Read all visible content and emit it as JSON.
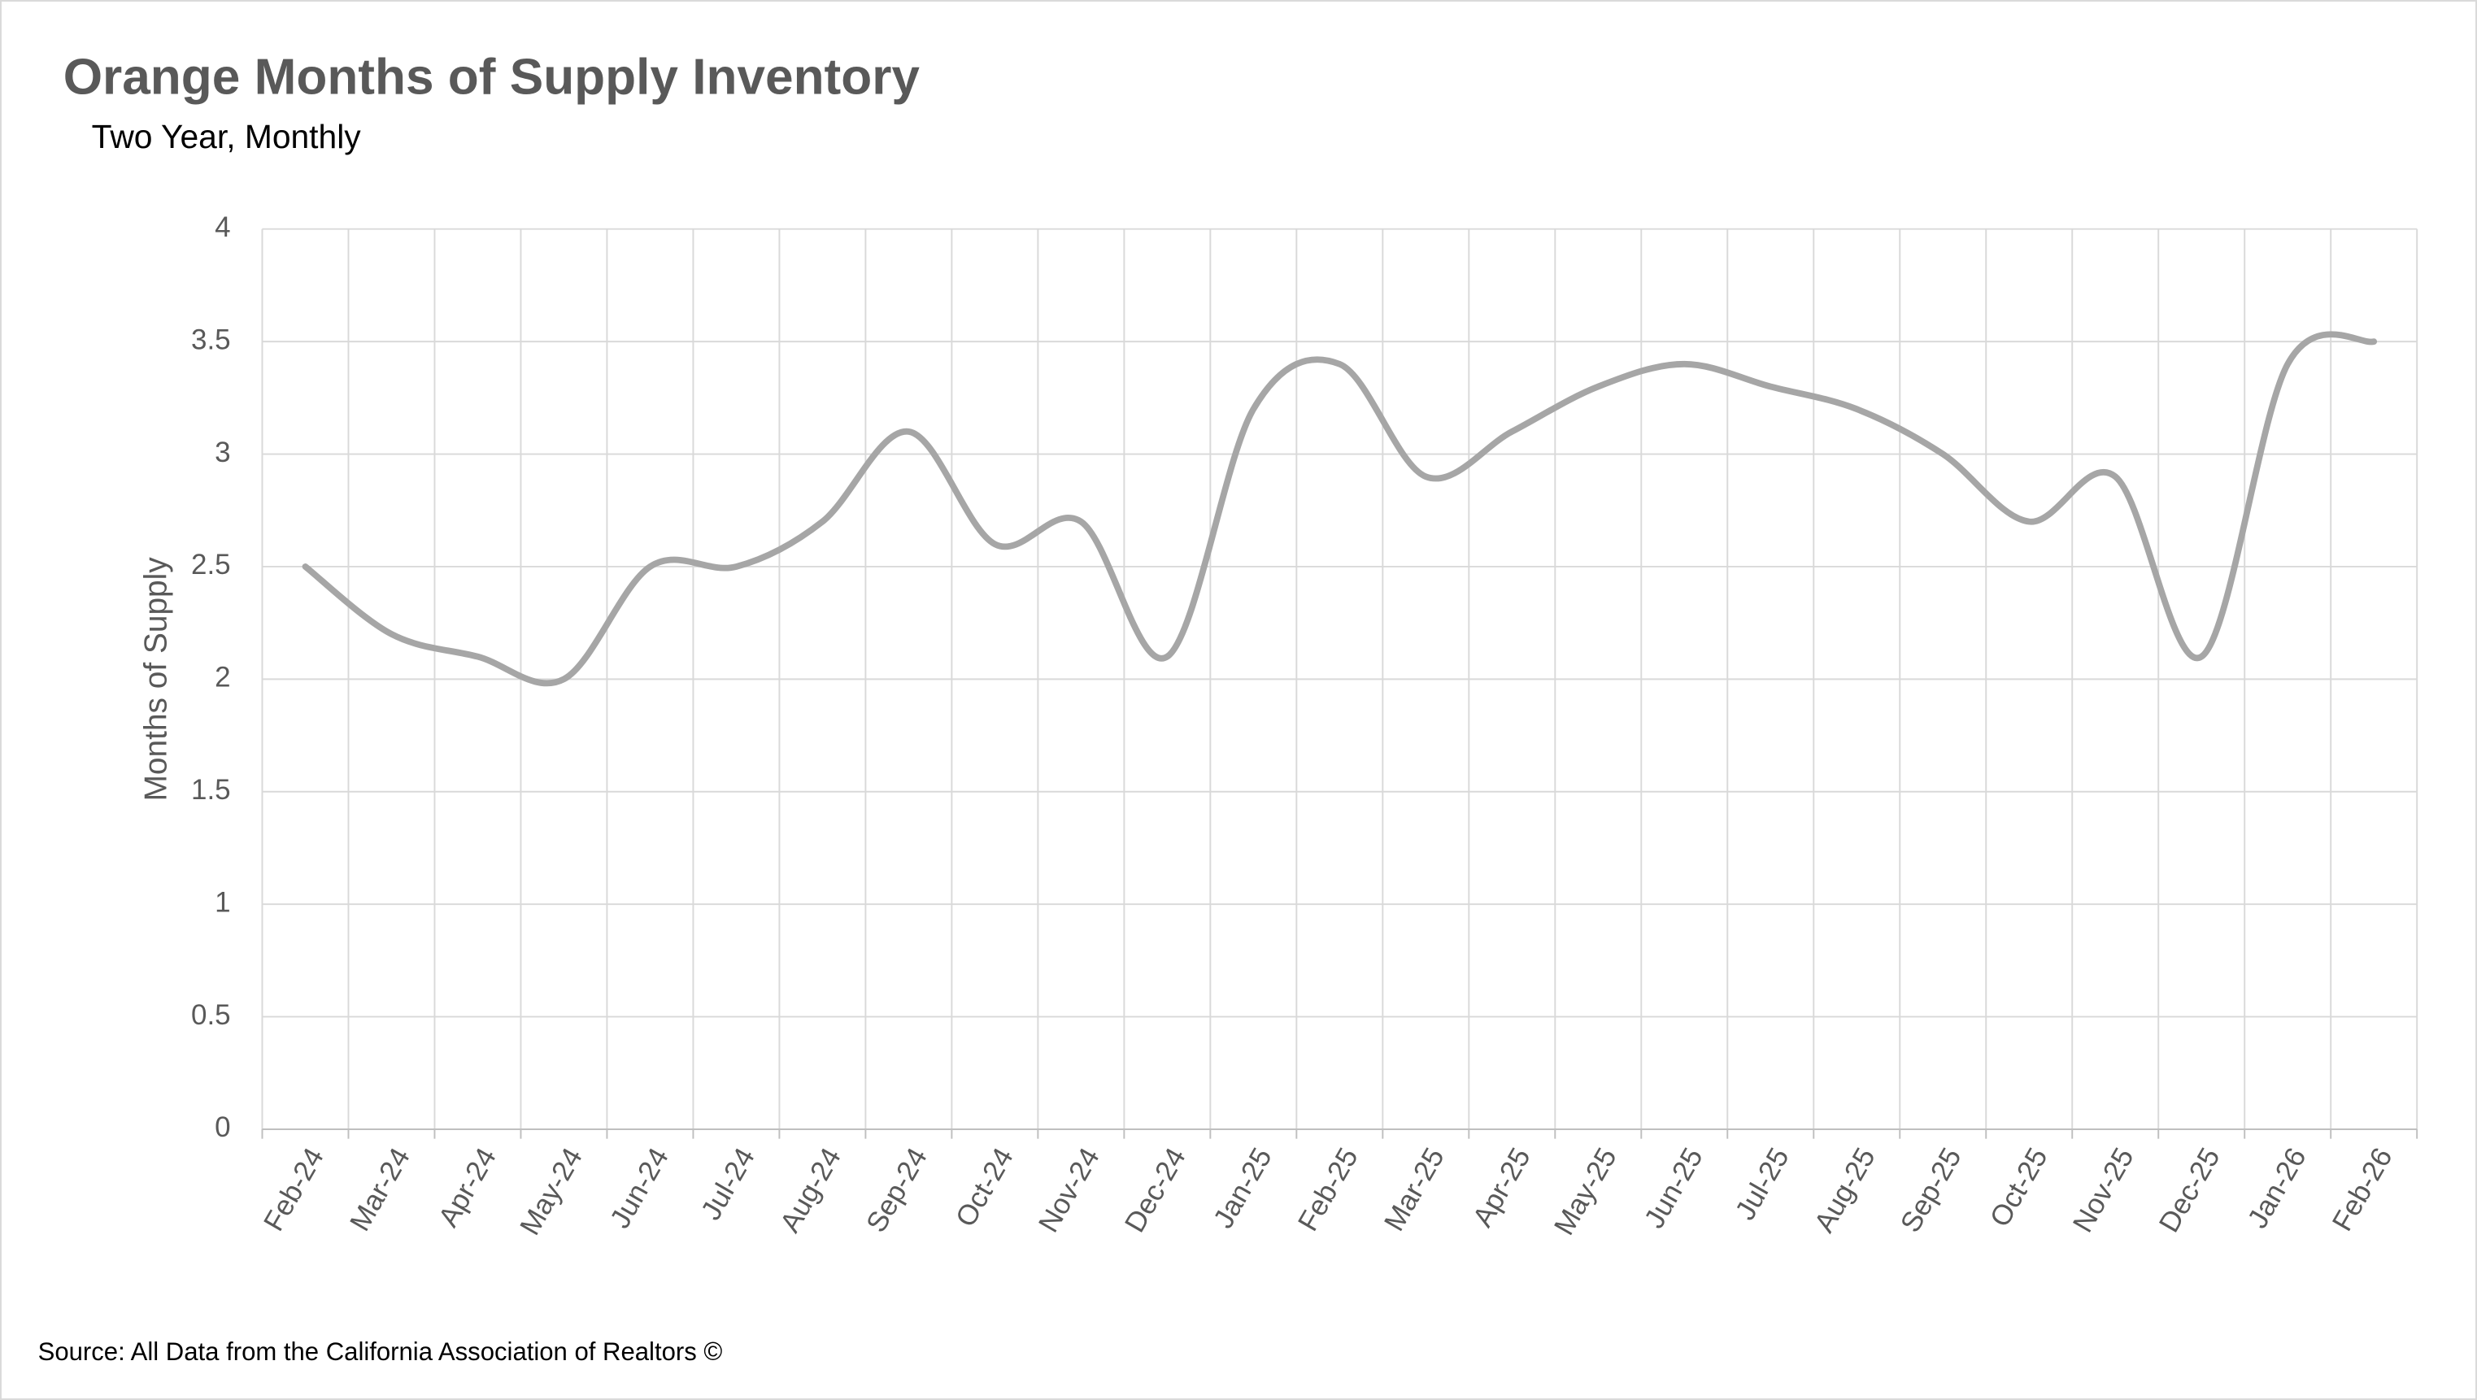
{
  "chart_data": {
    "type": "line",
    "title": "Orange Months of Supply Inventory",
    "subtitle": "Two Year, Monthly",
    "y_label": "Months of Supply",
    "source": "Source: All Data from the California Association of Realtors ©",
    "categories": [
      "Feb-24",
      "Mar-24",
      "Apr-24",
      "May-24",
      "Jun-24",
      "Jul-24",
      "Aug-24",
      "Sep-24",
      "Oct-24",
      "Nov-24",
      "Dec-24",
      "Jan-25",
      "Feb-25",
      "Mar-25",
      "Apr-25",
      "May-25",
      "Jun-25",
      "Jul-25",
      "Aug-25",
      "Sep-25",
      "Oct-25",
      "Nov-25",
      "Dec-25",
      "Jan-26",
      "Feb-26"
    ],
    "values": [
      2.5,
      2.2,
      2.1,
      2.0,
      2.5,
      2.5,
      2.7,
      3.1,
      2.6,
      2.7,
      2.1,
      3.2,
      3.4,
      2.9,
      3.1,
      3.3,
      3.4,
      3.3,
      3.2,
      3.0,
      2.7,
      2.9,
      2.1,
      3.4,
      3.5
    ],
    "color": "#a6a6a6",
    "smooth": true,
    "ylim": [
      0,
      4
    ],
    "yticks": [
      0,
      0.5,
      1,
      1.5,
      2,
      2.5,
      3,
      3.5,
      4
    ],
    "grid": true
  }
}
